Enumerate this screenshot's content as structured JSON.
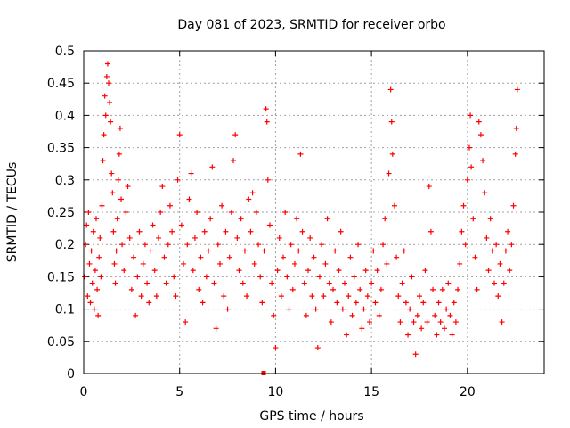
{
  "chart_data": {
    "type": "scatter",
    "title": "Day 081 of 2023, SRMTID for receiver orbo",
    "xlabel": "GPS time / hours",
    "ylabel": "SRMTID / TECUs",
    "xlim": [
      0,
      24
    ],
    "ylim": [
      0,
      0.5
    ],
    "grid": true,
    "marker": "+",
    "color": "#ff0000",
    "x_ticks": [
      0,
      5,
      10,
      15,
      20
    ],
    "x_tick_labels": [
      "0",
      "5",
      "10",
      "15",
      "20"
    ],
    "y_ticks": [
      0,
      0.05,
      0.1,
      0.15,
      0.2,
      0.25,
      0.3,
      0.35,
      0.4,
      0.45,
      0.5
    ],
    "y_tick_labels": [
      "0",
      "0.05",
      "0.1",
      "0.15",
      "0.2",
      "0.25",
      "0.3",
      "0.35",
      "0.4",
      "0.45",
      "0.5"
    ],
    "series": [
      {
        "name": "SRMTID",
        "points": [
          [
            0.05,
            0.15
          ],
          [
            0.1,
            0.2
          ],
          [
            0.15,
            0.23
          ],
          [
            0.2,
            0.12
          ],
          [
            0.25,
            0.25
          ],
          [
            0.3,
            0.17
          ],
          [
            0.35,
            0.11
          ],
          [
            0.4,
            0.19
          ],
          [
            0.45,
            0.14
          ],
          [
            0.5,
            0.22
          ],
          [
            0.55,
            0.1
          ],
          [
            0.6,
            0.16
          ],
          [
            0.65,
            0.24
          ],
          [
            0.7,
            0.13
          ],
          [
            0.75,
            0.09
          ],
          [
            0.8,
            0.18
          ],
          [
            0.85,
            0.21
          ],
          [
            0.9,
            0.15
          ],
          [
            0.95,
            0.26
          ],
          [
            1.0,
            0.33
          ],
          [
            1.05,
            0.37
          ],
          [
            1.1,
            0.43
          ],
          [
            1.15,
            0.4
          ],
          [
            1.2,
            0.46
          ],
          [
            1.25,
            0.48
          ],
          [
            1.3,
            0.45
          ],
          [
            1.35,
            0.42
          ],
          [
            1.4,
            0.39
          ],
          [
            1.45,
            0.31
          ],
          [
            1.5,
            0.28
          ],
          [
            1.55,
            0.22
          ],
          [
            1.6,
            0.17
          ],
          [
            1.65,
            0.14
          ],
          [
            1.7,
            0.19
          ],
          [
            1.75,
            0.24
          ],
          [
            1.8,
            0.3
          ],
          [
            1.85,
            0.34
          ],
          [
            1.9,
            0.38
          ],
          [
            1.95,
            0.27
          ],
          [
            2.0,
            0.2
          ],
          [
            2.1,
            0.16
          ],
          [
            2.2,
            0.25
          ],
          [
            2.3,
            0.29
          ],
          [
            2.4,
            0.21
          ],
          [
            2.5,
            0.13
          ],
          [
            2.6,
            0.18
          ],
          [
            2.7,
            0.09
          ],
          [
            2.8,
            0.15
          ],
          [
            2.9,
            0.22
          ],
          [
            3.0,
            0.12
          ],
          [
            3.1,
            0.17
          ],
          [
            3.2,
            0.2
          ],
          [
            3.3,
            0.14
          ],
          [
            3.4,
            0.11
          ],
          [
            3.5,
            0.19
          ],
          [
            3.6,
            0.23
          ],
          [
            3.7,
            0.16
          ],
          [
            3.8,
            0.12
          ],
          [
            3.9,
            0.21
          ],
          [
            4.0,
            0.25
          ],
          [
            4.1,
            0.29
          ],
          [
            4.2,
            0.18
          ],
          [
            4.3,
            0.14
          ],
          [
            4.4,
            0.2
          ],
          [
            4.5,
            0.26
          ],
          [
            4.6,
            0.22
          ],
          [
            4.7,
            0.15
          ],
          [
            4.8,
            0.12
          ],
          [
            4.9,
            0.3
          ],
          [
            5.0,
            0.37
          ],
          [
            5.1,
            0.23
          ],
          [
            5.2,
            0.17
          ],
          [
            5.3,
            0.08
          ],
          [
            5.4,
            0.2
          ],
          [
            5.5,
            0.27
          ],
          [
            5.6,
            0.31
          ],
          [
            5.7,
            0.16
          ],
          [
            5.8,
            0.21
          ],
          [
            5.9,
            0.25
          ],
          [
            6.0,
            0.13
          ],
          [
            6.1,
            0.18
          ],
          [
            6.2,
            0.11
          ],
          [
            6.3,
            0.22
          ],
          [
            6.4,
            0.15
          ],
          [
            6.5,
            0.19
          ],
          [
            6.6,
            0.24
          ],
          [
            6.7,
            0.32
          ],
          [
            6.8,
            0.14
          ],
          [
            6.9,
            0.07
          ],
          [
            7.0,
            0.2
          ],
          [
            7.1,
            0.17
          ],
          [
            7.2,
            0.26
          ],
          [
            7.3,
            0.12
          ],
          [
            7.4,
            0.22
          ],
          [
            7.5,
            0.1
          ],
          [
            7.6,
            0.18
          ],
          [
            7.7,
            0.25
          ],
          [
            7.8,
            0.33
          ],
          [
            7.9,
            0.37
          ],
          [
            8.0,
            0.21
          ],
          [
            8.1,
            0.16
          ],
          [
            8.2,
            0.24
          ],
          [
            8.3,
            0.14
          ],
          [
            8.4,
            0.19
          ],
          [
            8.5,
            0.12
          ],
          [
            8.6,
            0.27
          ],
          [
            8.7,
            0.22
          ],
          [
            8.8,
            0.28
          ],
          [
            8.9,
            0.17
          ],
          [
            9.0,
            0.25
          ],
          [
            9.1,
            0.2
          ],
          [
            9.2,
            0.15
          ],
          [
            9.3,
            0.11
          ],
          [
            9.4,
            0.19
          ],
          [
            9.5,
            0.41
          ],
          [
            9.55,
            0.39
          ],
          [
            9.6,
            0.3
          ],
          [
            9.7,
            0.23
          ],
          [
            9.8,
            0.14
          ],
          [
            9.9,
            0.09
          ],
          [
            10.0,
            0.04
          ],
          [
            10.1,
            0.16
          ],
          [
            10.2,
            0.21
          ],
          [
            10.3,
            0.12
          ],
          [
            10.4,
            0.18
          ],
          [
            10.5,
            0.25
          ],
          [
            10.6,
            0.15
          ],
          [
            10.7,
            0.1
          ],
          [
            10.8,
            0.2
          ],
          [
            10.9,
            0.13
          ],
          [
            11.0,
            0.17
          ],
          [
            11.1,
            0.24
          ],
          [
            11.2,
            0.19
          ],
          [
            11.3,
            0.34
          ],
          [
            11.4,
            0.22
          ],
          [
            11.5,
            0.14
          ],
          [
            11.6,
            0.09
          ],
          [
            11.7,
            0.16
          ],
          [
            11.8,
            0.21
          ],
          [
            11.9,
            0.12
          ],
          [
            12.0,
            0.18
          ],
          [
            12.1,
            0.1
          ],
          [
            12.2,
            0.04
          ],
          [
            12.3,
            0.15
          ],
          [
            12.4,
            0.2
          ],
          [
            12.5,
            0.12
          ],
          [
            12.6,
            0.17
          ],
          [
            12.7,
            0.24
          ],
          [
            12.8,
            0.14
          ],
          [
            12.9,
            0.08
          ],
          [
            13.0,
            0.13
          ],
          [
            13.1,
            0.19
          ],
          [
            13.2,
            0.11
          ],
          [
            13.3,
            0.16
          ],
          [
            13.4,
            0.22
          ],
          [
            13.5,
            0.1
          ],
          [
            13.6,
            0.14
          ],
          [
            13.7,
            0.06
          ],
          [
            13.8,
            0.12
          ],
          [
            13.9,
            0.18
          ],
          [
            14.0,
            0.09
          ],
          [
            14.1,
            0.15
          ],
          [
            14.2,
            0.11
          ],
          [
            14.3,
            0.2
          ],
          [
            14.4,
            0.13
          ],
          [
            14.5,
            0.07
          ],
          [
            14.6,
            0.1
          ],
          [
            14.7,
            0.16
          ],
          [
            14.8,
            0.12
          ],
          [
            14.9,
            0.08
          ],
          [
            15.0,
            0.14
          ],
          [
            15.1,
            0.19
          ],
          [
            15.2,
            0.11
          ],
          [
            15.3,
            0.16
          ],
          [
            15.4,
            0.09
          ],
          [
            15.5,
            0.13
          ],
          [
            15.6,
            0.2
          ],
          [
            15.7,
            0.24
          ],
          [
            15.8,
            0.17
          ],
          [
            15.9,
            0.31
          ],
          [
            16.0,
            0.44
          ],
          [
            16.05,
            0.39
          ],
          [
            16.1,
            0.34
          ],
          [
            16.2,
            0.26
          ],
          [
            16.3,
            0.18
          ],
          [
            16.4,
            0.12
          ],
          [
            16.5,
            0.08
          ],
          [
            16.6,
            0.14
          ],
          [
            16.7,
            0.19
          ],
          [
            16.8,
            0.11
          ],
          [
            16.9,
            0.06
          ],
          [
            17.0,
            0.1
          ],
          [
            17.1,
            0.15
          ],
          [
            17.2,
            0.08
          ],
          [
            17.3,
            0.03
          ],
          [
            17.4,
            0.09
          ],
          [
            17.5,
            0.12
          ],
          [
            17.6,
            0.07
          ],
          [
            17.7,
            0.11
          ],
          [
            17.8,
            0.16
          ],
          [
            17.9,
            0.08
          ],
          [
            18.0,
            0.29
          ],
          [
            18.1,
            0.22
          ],
          [
            18.2,
            0.13
          ],
          [
            18.3,
            0.09
          ],
          [
            18.4,
            0.06
          ],
          [
            18.5,
            0.11
          ],
          [
            18.6,
            0.08
          ],
          [
            18.7,
            0.13
          ],
          [
            18.8,
            0.07
          ],
          [
            18.9,
            0.1
          ],
          [
            19.0,
            0.14
          ],
          [
            19.1,
            0.09
          ],
          [
            19.2,
            0.06
          ],
          [
            19.3,
            0.11
          ],
          [
            19.4,
            0.08
          ],
          [
            19.5,
            0.13
          ],
          [
            19.6,
            0.17
          ],
          [
            19.7,
            0.22
          ],
          [
            19.8,
            0.26
          ],
          [
            19.9,
            0.2
          ],
          [
            20.0,
            0.3
          ],
          [
            20.1,
            0.35
          ],
          [
            20.15,
            0.4
          ],
          [
            20.2,
            0.32
          ],
          [
            20.3,
            0.24
          ],
          [
            20.4,
            0.18
          ],
          [
            20.5,
            0.13
          ],
          [
            20.6,
            0.39
          ],
          [
            20.7,
            0.37
          ],
          [
            20.8,
            0.33
          ],
          [
            20.9,
            0.28
          ],
          [
            21.0,
            0.21
          ],
          [
            21.1,
            0.16
          ],
          [
            21.2,
            0.24
          ],
          [
            21.3,
            0.19
          ],
          [
            21.4,
            0.14
          ],
          [
            21.5,
            0.2
          ],
          [
            21.6,
            0.12
          ],
          [
            21.7,
            0.17
          ],
          [
            21.8,
            0.08
          ],
          [
            21.9,
            0.14
          ],
          [
            22.0,
            0.19
          ],
          [
            22.1,
            0.22
          ],
          [
            22.2,
            0.16
          ],
          [
            22.3,
            0.2
          ],
          [
            22.4,
            0.26
          ],
          [
            22.5,
            0.34
          ],
          [
            22.55,
            0.38
          ],
          [
            22.6,
            0.44
          ]
        ]
      }
    ],
    "annotations": [
      {
        "type": "square-marker",
        "x": 9.4,
        "y": 0
      }
    ]
  }
}
